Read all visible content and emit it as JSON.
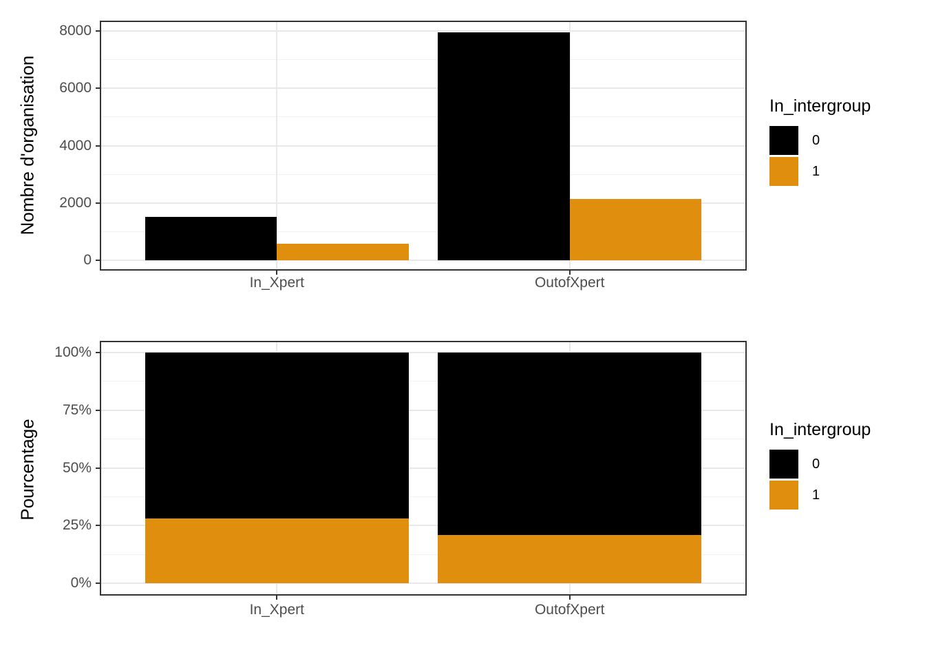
{
  "figure": {
    "background": "#FFFFFF"
  },
  "colors": {
    "series_0": "#000000",
    "series_1": "#DF8E0D",
    "panel_border": "#333333",
    "grid_major": "#E8E8E8",
    "grid_minor": "#F2F2F2",
    "tick_mark": "#333333",
    "axis_text": "#4D4D4D",
    "axis_title": "#000000"
  },
  "chart_data": [
    {
      "type": "bar",
      "mode": "grouped",
      "title": "",
      "xlabel": "",
      "ylabel": "Nombre d'organisation",
      "categories": [
        "In_Xpert",
        "OutofXpert"
      ],
      "series": [
        {
          "name": "0",
          "values": [
            1510,
            7950
          ]
        },
        {
          "name": "1",
          "values": [
            580,
            2130
          ]
        }
      ],
      "ylim": [
        0,
        8000
      ],
      "yticks": [
        0,
        2000,
        4000,
        6000,
        8000
      ],
      "ytick_labels": [
        "0",
        "2000",
        "4000",
        "6000",
        "8000"
      ],
      "yticks_minor": [
        1000,
        3000,
        5000,
        7000
      ],
      "grid": "major+minor horizontal, major vertical at categories",
      "legend": {
        "title": "In_intergroup",
        "position": "right",
        "entries": [
          "0",
          "1"
        ]
      }
    },
    {
      "type": "bar",
      "mode": "stacked_percent",
      "title": "",
      "xlabel": "",
      "ylabel": "Pourcentage",
      "categories": [
        "In_Xpert",
        "OutofXpert"
      ],
      "series": [
        {
          "name": "0",
          "values": [
            72,
            79
          ]
        },
        {
          "name": "1",
          "values": [
            28,
            21
          ]
        }
      ],
      "ylim": [
        0,
        100
      ],
      "yticks": [
        0,
        25,
        50,
        75,
        100
      ],
      "ytick_labels": [
        "0%",
        "25%",
        "50%",
        "75%",
        "100%"
      ],
      "yticks_minor": [
        12.5,
        37.5,
        62.5,
        87.5
      ],
      "grid": "major+minor horizontal, major vertical at categories",
      "legend": {
        "title": "In_intergroup",
        "position": "right",
        "entries": [
          "0",
          "1"
        ]
      }
    }
  ]
}
